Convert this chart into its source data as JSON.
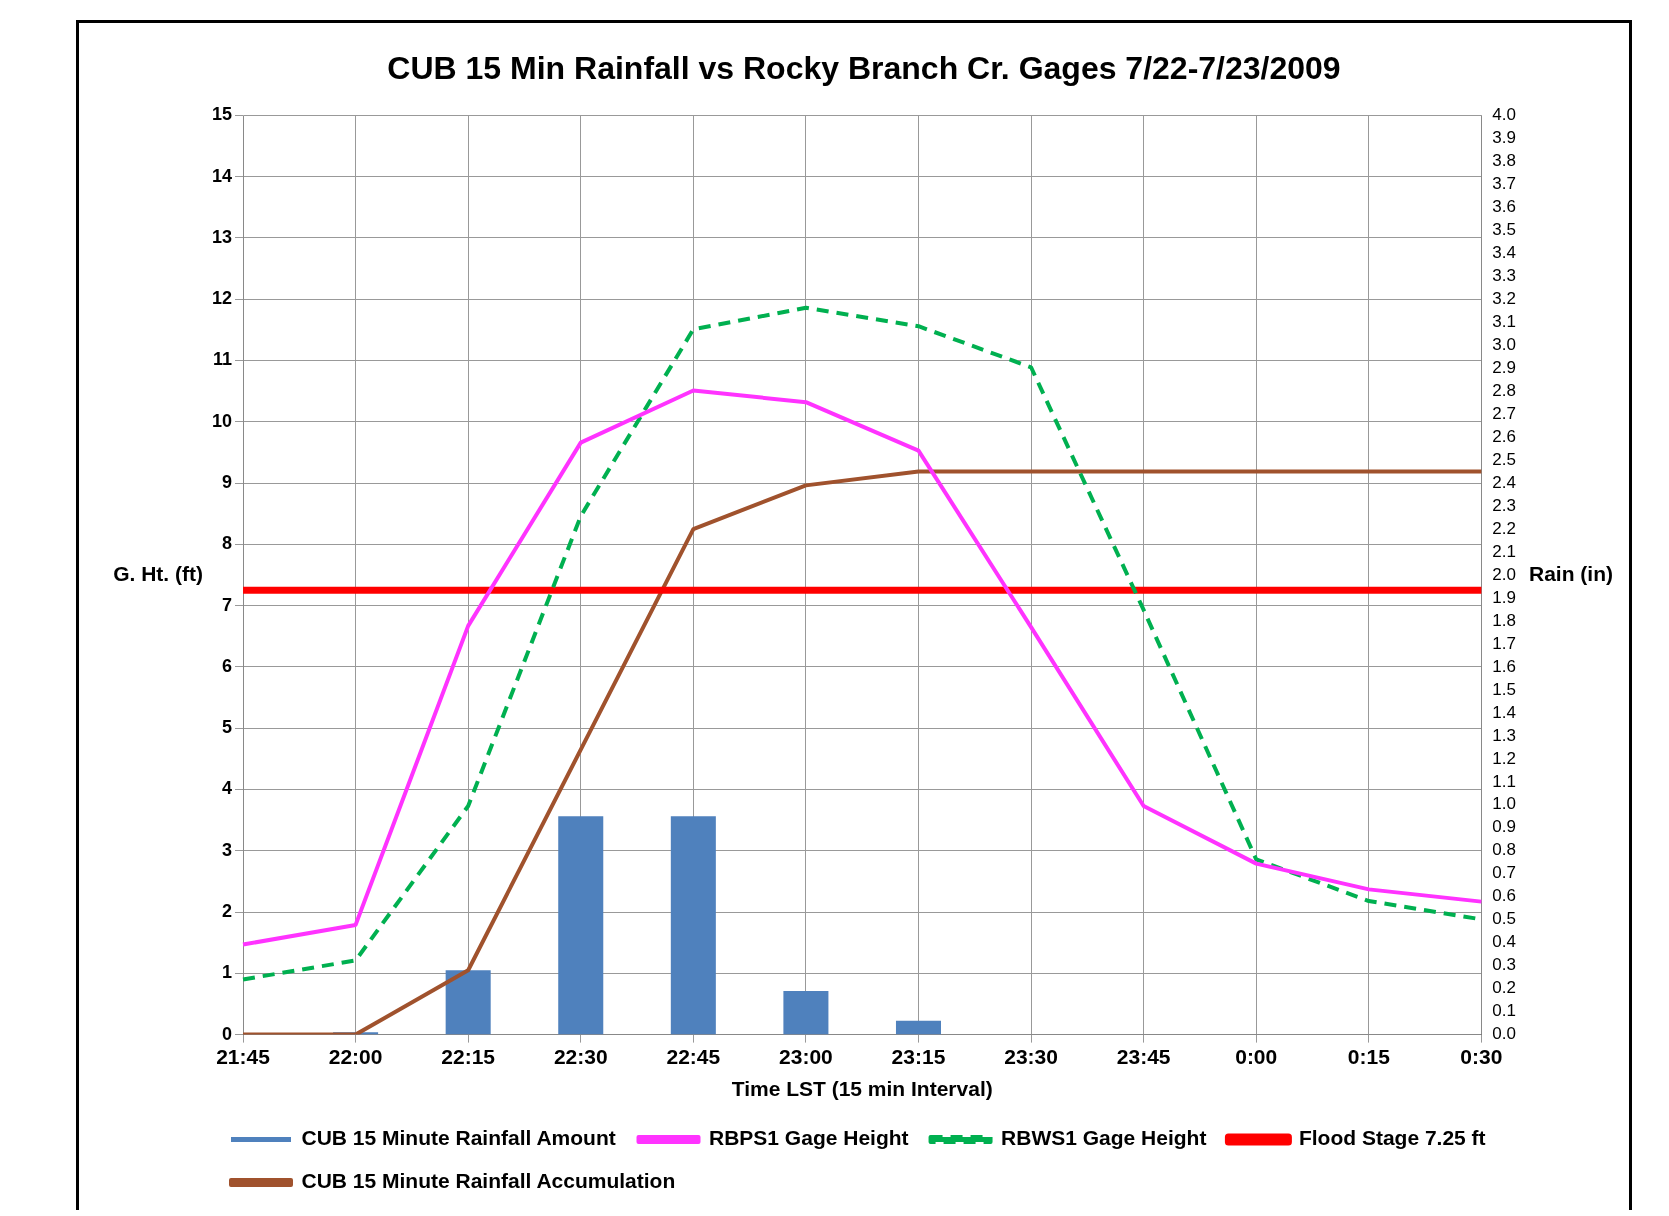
{
  "chart_data": {
    "type": "line",
    "title": "CUB 15 Min Rainfall vs Rocky Branch Cr. Gages 7/22-7/23/2009",
    "xlabel": "Time LST (15 min Interval)",
    "ylabel": "G. Ht. (ft)",
    "y2label": "Rain (in)",
    "categories": [
      "21:45",
      "22:00",
      "22:15",
      "22:30",
      "22:45",
      "23:00",
      "23:15",
      "23:30",
      "23:45",
      "0:00",
      "0:15",
      "0:30"
    ],
    "series": [
      {
        "name": "CUB 15 Minute Rainfall Amount",
        "type": "bar",
        "axis": "y2",
        "color": "#4f81bd",
        "values": [
          null,
          0.01,
          0.28,
          0.95,
          0.95,
          0.19,
          0.06,
          null,
          null,
          null,
          null,
          null
        ]
      },
      {
        "name": "RBPS1 Gage Height",
        "color": "#ff33ff",
        "values": [
          1.47,
          1.79,
          6.67,
          9.66,
          10.51,
          10.32,
          9.53,
          6.65,
          3.73,
          2.79,
          2.37,
          2.17
        ]
      },
      {
        "name": "RBWS1 Gage Height",
        "line_style": "dashed",
        "color": "#00b050",
        "values": [
          0.9,
          1.21,
          3.73,
          8.46,
          11.51,
          11.86,
          11.56,
          10.89,
          6.93,
          2.86,
          2.18,
          1.88
        ]
      },
      {
        "name": "Flood Stage 7.25 ft",
        "color": "#ff0000",
        "values": [
          7.25,
          7.25,
          7.25,
          7.25,
          7.25,
          7.25,
          7.25,
          7.25,
          7.25,
          7.25,
          7.25,
          7.25
        ]
      },
      {
        "name": "CUB 15 Minute Rainfall Accumulation",
        "axis": "y2",
        "color": "#a0522d",
        "values": [
          0,
          0,
          0.28,
          1.24,
          2.2,
          2.39,
          2.45,
          2.45,
          2.45,
          2.45,
          2.45,
          2.45
        ]
      }
    ],
    "ylim": [
      0,
      15
    ],
    "yticks": [
      0,
      1,
      2,
      3,
      4,
      5,
      6,
      7,
      8,
      9,
      10,
      11,
      12,
      13,
      14,
      15
    ],
    "y2lim": [
      0,
      4
    ],
    "y2ticks": [
      {
        "value": 0,
        "label": "0.0"
      },
      0.1,
      0.2,
      0.3,
      0.4,
      0.5,
      0.6,
      0.7,
      0.8,
      0.9,
      {
        "value": 1,
        "label": "1.0"
      },
      1.1,
      1.2,
      1.3,
      1.4,
      1.5,
      1.6,
      1.7,
      1.8,
      1.9,
      {
        "value": 2,
        "label": "2.0"
      },
      2.1,
      2.2,
      2.3,
      2.4,
      2.5,
      2.6,
      2.7,
      2.8,
      2.9,
      {
        "value": 3,
        "label": "3.0"
      },
      3.1,
      3.2,
      3.3,
      3.4,
      3.5,
      3.6,
      3.7,
      3.8,
      3.9,
      {
        "value": 4,
        "label": "4.0"
      }
    ],
    "grid": true,
    "legend": "bottom",
    "marker": "none"
  }
}
